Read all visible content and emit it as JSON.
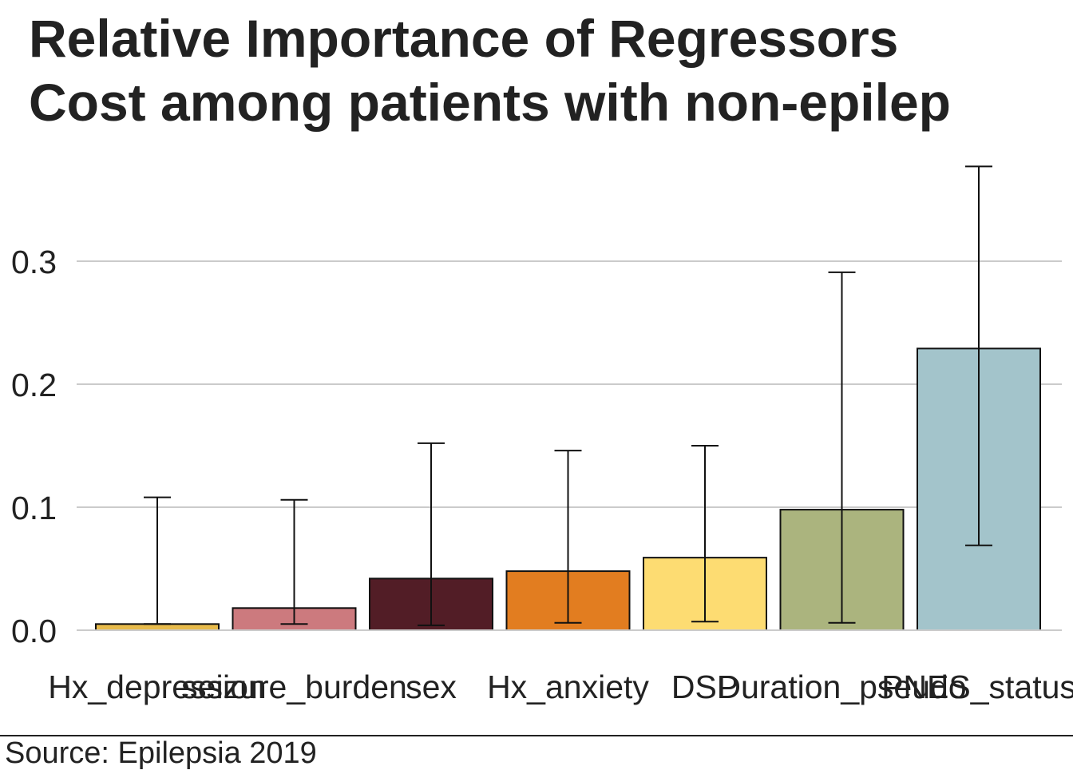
{
  "chart_data": {
    "type": "bar",
    "title": "Relative Importance of Regressors",
    "subtitle": "Cost among patients with non-epilep",
    "xlabel": "",
    "ylabel": "",
    "ylim": [
      0,
      0.38
    ],
    "y_ticks": [
      "0.0",
      "0.1",
      "0.2",
      "0.3"
    ],
    "y_tick_values": [
      0,
      0.1,
      0.2,
      0.3
    ],
    "grid": "horizontal",
    "legend": "none",
    "categories": [
      "Hx_depression",
      "seizure_burden",
      "sex",
      "Hx_anxiety",
      "DSP",
      "Duration_pseudo",
      "PNES_status"
    ],
    "values": [
      0.005,
      0.018,
      0.042,
      0.048,
      0.059,
      0.098,
      0.229
    ],
    "error_lower": [
      0.005,
      0.005,
      0.004,
      0.006,
      0.007,
      0.006,
      0.069
    ],
    "error_upper": [
      0.108,
      0.106,
      0.152,
      0.146,
      0.15,
      0.291,
      0.377
    ],
    "colors": [
      "#E8BB4B",
      "#CC7A7E",
      "#521D26",
      "#E27D20",
      "#FDDC72",
      "#ABB47E",
      "#A3C4CB"
    ]
  },
  "source": "Source: Epilepsia 2019"
}
